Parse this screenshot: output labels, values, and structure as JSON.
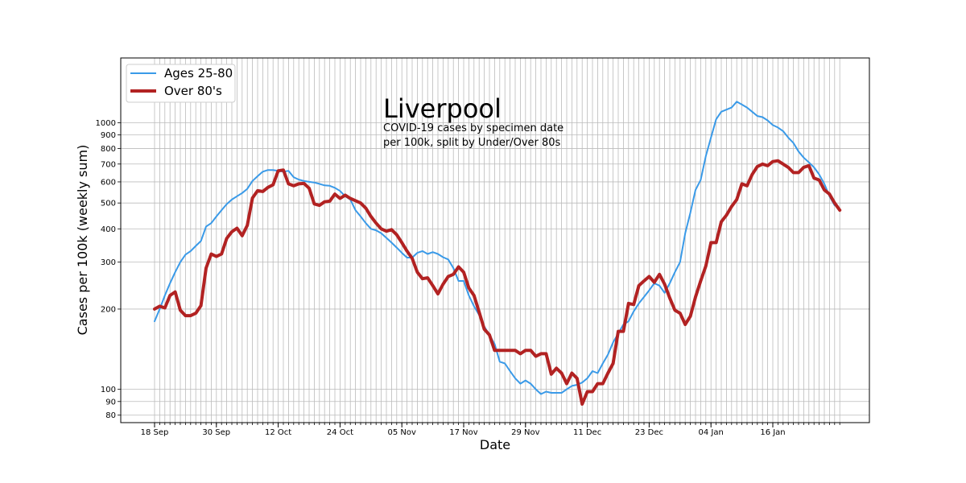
{
  "chart_data": {
    "type": "line",
    "title": "",
    "xlabel": "Date",
    "ylabel": "Cases per 100k (weekly sum)",
    "yscale": "log",
    "ylim": [
      75,
      1750
    ],
    "grid": true,
    "legend_position": "top-left",
    "annotation": {
      "title": "Liverpool",
      "lines": [
        "COVID-19 cases by specimen date",
        "per 100k, split by Under/Over 80s"
      ]
    },
    "x_ticks": [
      "18 Sep",
      "30 Sep",
      "12 Oct",
      "24 Oct",
      "05 Nov",
      "17 Nov",
      "29 Nov",
      "11 Dec",
      "23 Dec",
      "04 Jan",
      "16 Jan"
    ],
    "y_ticks": [
      {
        "value": 80,
        "label": "80"
      },
      {
        "value": 90,
        "label": "90"
      },
      {
        "value": 100,
        "label": "100"
      },
      {
        "value": 200,
        "label": "200"
      },
      {
        "value": 300,
        "label": "300"
      },
      {
        "value": 400,
        "label": "400"
      },
      {
        "value": 500,
        "label": "500"
      },
      {
        "value": 600,
        "label": "600"
      },
      {
        "value": 700,
        "label": "700"
      },
      {
        "value": 800,
        "label": "800"
      },
      {
        "value": 900,
        "label": "900"
      },
      {
        "value": 1000,
        "label": "1000"
      }
    ],
    "x_start": "2020-09-18",
    "series": [
      {
        "name": "Ages 25-80",
        "color": "#3a9ae8",
        "values": [
          180,
          200,
          225,
          250,
          275,
          300,
          320,
          330,
          345,
          360,
          408,
          420,
          445,
          470,
          495,
          515,
          530,
          545,
          565,
          605,
          630,
          655,
          665,
          665,
          660,
          655,
          660,
          625,
          612,
          605,
          600,
          597,
          590,
          582,
          580,
          570,
          555,
          530,
          515,
          470,
          445,
          420,
          400,
          395,
          385,
          370,
          355,
          340,
          325,
          312,
          312,
          325,
          330,
          322,
          327,
          322,
          313,
          307,
          285,
          255,
          255,
          225,
          205,
          190,
          172,
          160,
          148,
          127,
          125,
          117,
          110,
          105,
          108,
          105,
          100,
          96,
          98,
          97,
          97,
          97,
          100,
          103,
          104,
          106,
          110,
          117,
          115,
          125,
          135,
          150,
          162,
          175,
          180,
          196,
          210,
          222,
          235,
          250,
          245,
          230,
          250,
          275,
          300,
          385,
          460,
          560,
          610,
          750,
          880,
          1030,
          1100,
          1120,
          1140,
          1200,
          1170,
          1140,
          1100,
          1060,
          1050,
          1020,
          980,
          960,
          930,
          880,
          840,
          780,
          740,
          710,
          680,
          640,
          590,
          530,
          490
        ],
        "x_start_index": 0
      },
      {
        "name": "Over 80's",
        "color": "#b22222",
        "values": [
          200,
          205,
          202,
          225,
          232,
          198,
          189,
          189,
          193,
          206,
          285,
          322,
          315,
          322,
          368,
          390,
          402,
          377,
          412,
          522,
          556,
          552,
          572,
          585,
          660,
          665,
          590,
          580,
          590,
          592,
          568,
          496,
          490,
          505,
          508,
          540,
          520,
          535,
          520,
          510,
          500,
          478,
          445,
          420,
          400,
          392,
          397,
          380,
          355,
          330,
          310,
          275,
          260,
          262,
          245,
          228,
          248,
          265,
          270,
          288,
          275,
          240,
          225,
          195,
          168,
          160,
          140,
          140,
          140,
          140,
          140,
          136,
          140,
          140,
          133,
          136,
          136,
          114,
          120,
          115,
          105,
          115,
          110,
          88,
          98,
          98,
          105,
          105,
          115,
          125,
          165,
          165,
          210,
          208,
          245,
          255,
          265,
          252,
          270,
          248,
          220,
          198,
          193,
          175,
          188,
          222,
          255,
          290,
          355,
          355,
          425,
          450,
          485,
          515,
          590,
          580,
          640,
          685,
          700,
          690,
          715,
          720,
          700,
          680,
          650,
          650,
          680,
          690,
          620,
          610,
          560,
          540,
          500,
          470
        ],
        "x_start_index": 0
      }
    ]
  }
}
